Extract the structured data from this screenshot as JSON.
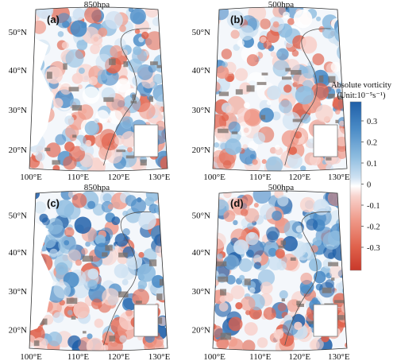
{
  "figure": {
    "panels": [
      {
        "label": "(a)",
        "title": "850hpa"
      },
      {
        "label": "(b)",
        "title": "500hpa"
      },
      {
        "label": "(c)",
        "title": "850hpa"
      },
      {
        "label": "(d)",
        "title": "500hpa"
      }
    ],
    "lat_labels": [
      "50°N",
      "40°N",
      "30°N",
      "20°N"
    ],
    "lon_labels": [
      "100°E",
      "110°E",
      "120°E",
      "130°E"
    ],
    "colorbar": {
      "title_line1": "Absolute vorticity",
      "title_line2": "(Unit:10⁻⁵s⁻¹)",
      "ticks": [
        "0.3",
        "0.2",
        "0.1",
        "0",
        "-0.1",
        "-0.2",
        "-0.3"
      ],
      "colors": [
        "#1f5fa8",
        "#4a8bc6",
        "#8fbde0",
        "#cfe2f2",
        "#ffffff",
        "#f8d3cd",
        "#ef9a8a",
        "#e0624c",
        "#c8382a"
      ]
    },
    "colors": {
      "positive": "#2f6fb3",
      "negative": "#d0503f",
      "terrain": "#7a6f6a",
      "border": "#555555"
    }
  }
}
